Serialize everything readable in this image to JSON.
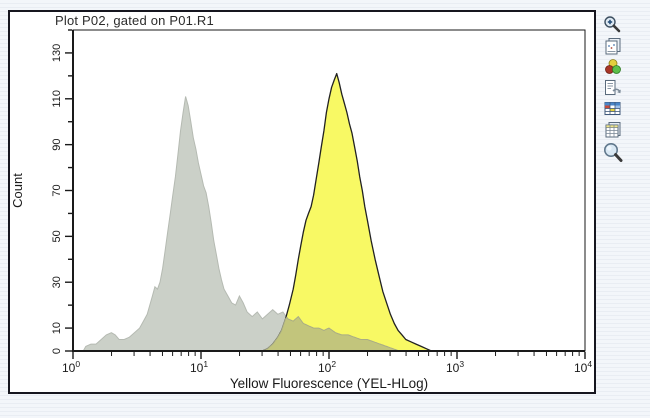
{
  "window": {
    "title": "Plot P02, gated on P01.R1"
  },
  "toolbar": {
    "icons": [
      {
        "name": "zoom-in-icon",
        "label": "Zoom In"
      },
      {
        "name": "copy-plot-icon",
        "label": "Copy Plot"
      },
      {
        "name": "color-dots-icon",
        "label": "Colors"
      },
      {
        "name": "export-plot-icon",
        "label": "Export Plot"
      },
      {
        "name": "stats-table-icon",
        "label": "Statistics Table"
      },
      {
        "name": "data-table-icon",
        "label": "Data Table"
      },
      {
        "name": "magnifier-icon",
        "label": "Magnify"
      }
    ]
  },
  "chart_data": {
    "type": "area",
    "title": "Plot P02, gated on P01.R1",
    "xlabel": "Yellow Fluorescence (YEL-HLog)",
    "ylabel": "Count",
    "x_scale": "log10",
    "x_decades": [
      0,
      4
    ],
    "x_decade_labels": [
      "0",
      "1",
      "2",
      "3",
      "4"
    ],
    "ylim": [
      0,
      140
    ],
    "y_label_ticks": [
      0,
      10,
      30,
      50,
      70,
      90,
      110,
      130
    ],
    "y_minor_step": 10,
    "grid": false,
    "legend": "none",
    "colors": {
      "control_fill": "#cbd0c8",
      "control_edge": "#b5bab2",
      "sample_fill": "#f8f964",
      "sample_edge": "#222222",
      "overlap_fill": "#c2c57c",
      "overlap_edge": "#a9ac85",
      "axis": "#1a1a1a",
      "panel_border": "#16161f"
    },
    "series": [
      {
        "name": "unstained-control-gray",
        "fill": "#cbd0c8",
        "stroke": "#b5bab2",
        "points": [
          [
            0.08,
            0
          ],
          [
            0.1,
            2
          ],
          [
            0.14,
            3
          ],
          [
            0.18,
            3
          ],
          [
            0.22,
            5
          ],
          [
            0.26,
            7
          ],
          [
            0.3,
            8
          ],
          [
            0.33,
            7
          ],
          [
            0.36,
            5
          ],
          [
            0.4,
            5
          ],
          [
            0.44,
            6
          ],
          [
            0.48,
            8
          ],
          [
            0.52,
            10
          ],
          [
            0.55,
            13
          ],
          [
            0.58,
            16
          ],
          [
            0.6,
            20
          ],
          [
            0.62,
            24
          ],
          [
            0.64,
            28
          ],
          [
            0.66,
            27
          ],
          [
            0.68,
            30
          ],
          [
            0.7,
            36
          ],
          [
            0.72,
            44
          ],
          [
            0.74,
            52
          ],
          [
            0.76,
            60
          ],
          [
            0.78,
            68
          ],
          [
            0.8,
            76
          ],
          [
            0.82,
            86
          ],
          [
            0.84,
            96
          ],
          [
            0.86,
            104
          ],
          [
            0.88,
            111
          ],
          [
            0.9,
            107
          ],
          [
            0.92,
            100
          ],
          [
            0.94,
            93
          ],
          [
            0.96,
            88
          ],
          [
            0.98,
            82
          ],
          [
            1.0,
            77
          ],
          [
            1.02,
            72
          ],
          [
            1.04,
            69
          ],
          [
            1.06,
            63
          ],
          [
            1.08,
            56
          ],
          [
            1.1,
            48
          ],
          [
            1.12,
            42
          ],
          [
            1.14,
            36
          ],
          [
            1.16,
            31
          ],
          [
            1.18,
            27
          ],
          [
            1.21,
            24
          ],
          [
            1.24,
            21
          ],
          [
            1.27,
            20
          ],
          [
            1.3,
            24
          ],
          [
            1.33,
            21
          ],
          [
            1.36,
            17
          ],
          [
            1.4,
            15
          ],
          [
            1.44,
            17
          ],
          [
            1.48,
            14
          ],
          [
            1.52,
            16
          ],
          [
            1.56,
            18
          ],
          [
            1.6,
            16
          ],
          [
            1.64,
            17
          ],
          [
            1.68,
            14
          ],
          [
            1.72,
            13
          ],
          [
            1.76,
            15
          ],
          [
            1.8,
            12
          ],
          [
            1.84,
            11
          ],
          [
            1.88,
            10
          ],
          [
            1.92,
            10
          ],
          [
            1.96,
            9
          ],
          [
            2.0,
            10
          ],
          [
            2.05,
            8
          ],
          [
            2.1,
            7
          ],
          [
            2.15,
            7
          ],
          [
            2.2,
            6
          ],
          [
            2.25,
            5
          ],
          [
            2.3,
            5
          ],
          [
            2.35,
            4
          ],
          [
            2.4,
            3
          ],
          [
            2.45,
            2
          ],
          [
            2.5,
            1
          ],
          [
            2.55,
            0
          ]
        ]
      },
      {
        "name": "stained-sample-yellow",
        "fill": "#f8f964",
        "stroke": "#222222",
        "points": [
          [
            1.48,
            0
          ],
          [
            1.52,
            1
          ],
          [
            1.56,
            3
          ],
          [
            1.6,
            6
          ],
          [
            1.63,
            9
          ],
          [
            1.66,
            14
          ],
          [
            1.69,
            20
          ],
          [
            1.72,
            27
          ],
          [
            1.74,
            33
          ],
          [
            1.76,
            40
          ],
          [
            1.78,
            46
          ],
          [
            1.8,
            52
          ],
          [
            1.82,
            57
          ],
          [
            1.84,
            60
          ],
          [
            1.86,
            63
          ],
          [
            1.88,
            68
          ],
          [
            1.9,
            75
          ],
          [
            1.92,
            82
          ],
          [
            1.94,
            89
          ],
          [
            1.96,
            96
          ],
          [
            1.98,
            104
          ],
          [
            2.0,
            110
          ],
          [
            2.02,
            115
          ],
          [
            2.04,
            118
          ],
          [
            2.06,
            121
          ],
          [
            2.08,
            117
          ],
          [
            2.1,
            112
          ],
          [
            2.12,
            108
          ],
          [
            2.14,
            104
          ],
          [
            2.16,
            99
          ],
          [
            2.18,
            95
          ],
          [
            2.2,
            89
          ],
          [
            2.22,
            83
          ],
          [
            2.24,
            76
          ],
          [
            2.26,
            70
          ],
          [
            2.28,
            63
          ],
          [
            2.3,
            57
          ],
          [
            2.33,
            48
          ],
          [
            2.36,
            40
          ],
          [
            2.39,
            33
          ],
          [
            2.42,
            26
          ],
          [
            2.45,
            21
          ],
          [
            2.48,
            16
          ],
          [
            2.51,
            12
          ],
          [
            2.54,
            9
          ],
          [
            2.57,
            7
          ],
          [
            2.6,
            5
          ],
          [
            2.64,
            4
          ],
          [
            2.68,
            3
          ],
          [
            2.72,
            2
          ],
          [
            2.76,
            1
          ],
          [
            2.8,
            0
          ]
        ]
      }
    ]
  }
}
